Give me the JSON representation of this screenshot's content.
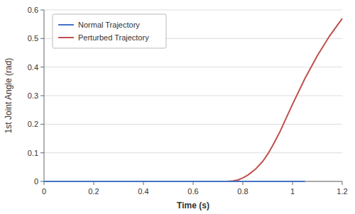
{
  "chart_data": {
    "type": "line",
    "xlabel": "Time (s)",
    "ylabel": "1st Joint Angle (rad)",
    "xlim": [
      0,
      1.2
    ],
    "ylim": [
      0,
      0.6
    ],
    "xticks": [
      0,
      0.2,
      0.4,
      0.6,
      0.8,
      1,
      1.2
    ],
    "yticks": [
      0,
      0.1,
      0.2,
      0.3,
      0.4,
      0.5,
      0.6
    ],
    "grid": true,
    "legend": "upper left",
    "series": [
      {
        "name": "Normal Trajectory",
        "color": "#4472C4",
        "x": [
          0.0,
          0.1,
          0.2,
          0.3,
          0.4,
          0.5,
          0.6,
          0.65,
          0.7,
          0.75,
          0.8,
          0.85,
          0.9,
          0.95,
          1.0,
          1.05
        ],
        "values": [
          0.0,
          0.0,
          0.0,
          0.0,
          0.0,
          0.0,
          0.0,
          0.0,
          0.0,
          0.0,
          0.0,
          0.0,
          0.0,
          0.0,
          0.0,
          0.0
        ]
      },
      {
        "name": "Perturbed Trajectory",
        "color": "#C0504D",
        "x": [
          0.0,
          0.1,
          0.2,
          0.3,
          0.4,
          0.5,
          0.6,
          0.65,
          0.7,
          0.72,
          0.74,
          0.75,
          0.76,
          0.78,
          0.8,
          0.82,
          0.85,
          0.88,
          0.9,
          0.92,
          0.95,
          1.0,
          1.05,
          1.1,
          1.15,
          1.2
        ],
        "values": [
          0.0,
          0.0,
          0.0,
          0.0,
          0.0,
          0.0,
          0.0,
          0.0,
          0.0,
          0.0,
          0.0,
          0.001,
          0.002,
          0.005,
          0.012,
          0.022,
          0.042,
          0.07,
          0.095,
          0.125,
          0.175,
          0.27,
          0.36,
          0.44,
          0.51,
          0.57
        ]
      }
    ]
  }
}
